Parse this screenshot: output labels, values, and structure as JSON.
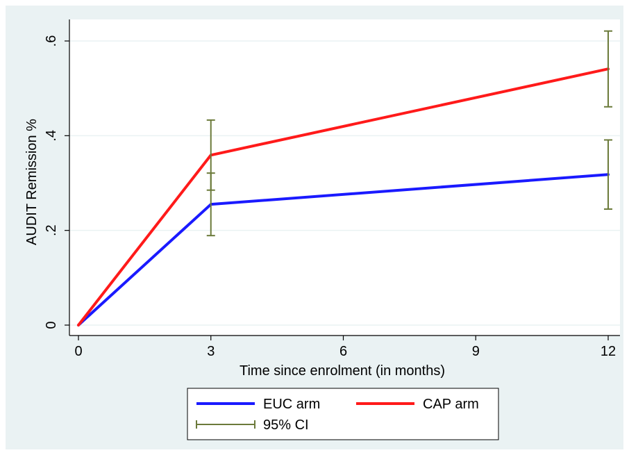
{
  "chart_data": {
    "type": "line",
    "xlabel": "Time since enrolment (in months)",
    "ylabel": "AUDIT Remission %",
    "xlim": [
      0,
      12
    ],
    "ylim": [
      0,
      0.6
    ],
    "grid": true,
    "x_ticks": [
      0,
      3,
      6,
      9,
      12
    ],
    "x_tick_labels": [
      "0",
      "3",
      "6",
      "9",
      "12"
    ],
    "y_ticks": [
      0,
      0.2,
      0.4,
      0.6
    ],
    "y_tick_labels": [
      "0",
      ".2",
      ".4",
      ".6"
    ],
    "legend_position": "bottom",
    "series": [
      {
        "name": "EUC arm",
        "color": "#1a1aff",
        "x": [
          0,
          3,
          12
        ],
        "y": [
          0,
          0.255,
          0.318
        ],
        "ci_lower": [
          null,
          0.189,
          0.245
        ],
        "ci_upper": [
          null,
          0.321,
          0.391
        ]
      },
      {
        "name": "CAP arm",
        "color": "#ff1a1a",
        "x": [
          0,
          3,
          12
        ],
        "y": [
          0,
          0.359,
          0.541
        ],
        "ci_lower": [
          null,
          0.285,
          0.461
        ],
        "ci_upper": [
          null,
          0.433,
          0.621
        ]
      }
    ],
    "ci": {
      "name": "95% CI",
      "color": "#6b7a3a"
    }
  }
}
